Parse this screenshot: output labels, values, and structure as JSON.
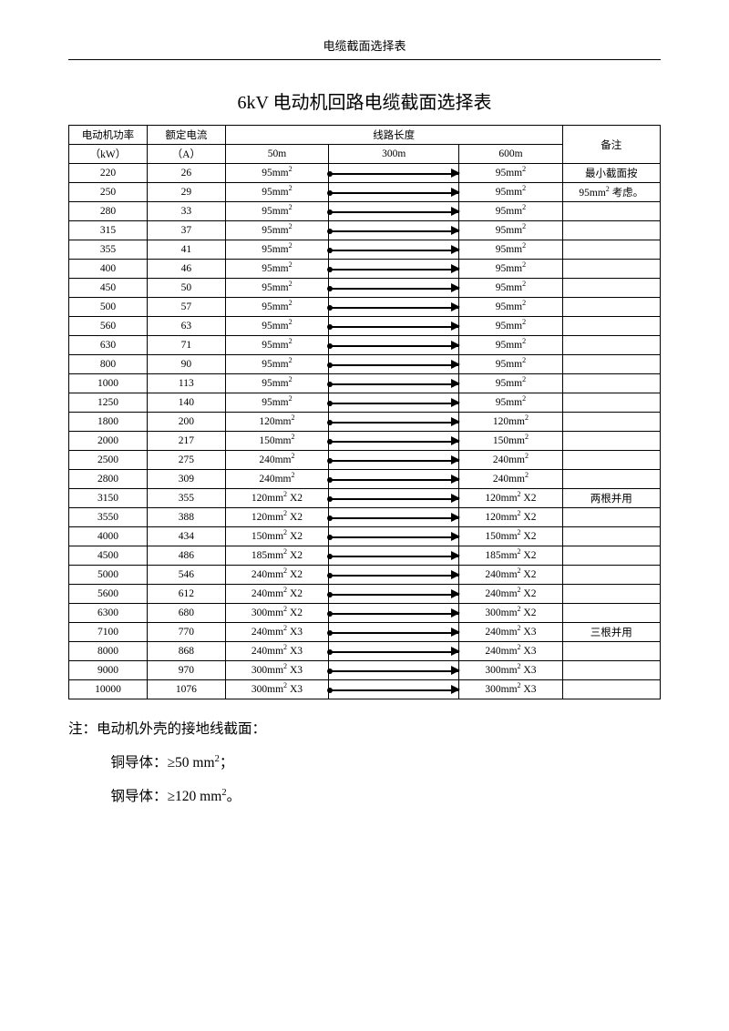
{
  "header": {
    "text": "电缆截面选择表"
  },
  "title": "6kV 电动机回路电缆截面选择表",
  "columns": {
    "power": "电动机功率",
    "power_unit": "（kW）",
    "current": "额定电流",
    "current_unit": "（A）",
    "length_group": "线路长度",
    "l50": "50m",
    "l300": "300m",
    "l600": "600m",
    "remark": "备注"
  },
  "rows": [
    {
      "p": "220",
      "a": "26",
      "v50": "95mm",
      "v50x": "",
      "v600": "95mm",
      "v600x": "",
      "rem": "最小截面按"
    },
    {
      "p": "250",
      "a": "29",
      "v50": "95mm",
      "v50x": "",
      "v600": "95mm",
      "v600x": "",
      "rem": "95mm² 考虑。"
    },
    {
      "p": "280",
      "a": "33",
      "v50": "95mm",
      "v50x": "",
      "v600": "95mm",
      "v600x": "",
      "rem": ""
    },
    {
      "p": "315",
      "a": "37",
      "v50": "95mm",
      "v50x": "",
      "v600": "95mm",
      "v600x": "",
      "rem": ""
    },
    {
      "p": "355",
      "a": "41",
      "v50": "95mm",
      "v50x": "",
      "v600": "95mm",
      "v600x": "",
      "rem": ""
    },
    {
      "p": "400",
      "a": "46",
      "v50": "95mm",
      "v50x": "",
      "v600": "95mm",
      "v600x": "",
      "rem": ""
    },
    {
      "p": "450",
      "a": "50",
      "v50": "95mm",
      "v50x": "",
      "v600": "95mm",
      "v600x": "",
      "rem": ""
    },
    {
      "p": "500",
      "a": "57",
      "v50": "95mm",
      "v50x": "",
      "v600": "95mm",
      "v600x": "",
      "rem": ""
    },
    {
      "p": "560",
      "a": "63",
      "v50": "95mm",
      "v50x": "",
      "v600": "95mm",
      "v600x": "",
      "rem": ""
    },
    {
      "p": "630",
      "a": "71",
      "v50": "95mm",
      "v50x": "",
      "v600": "95mm",
      "v600x": "",
      "rem": ""
    },
    {
      "p": "800",
      "a": "90",
      "v50": "95mm",
      "v50x": "",
      "v600": "95mm",
      "v600x": "",
      "rem": ""
    },
    {
      "p": "1000",
      "a": "113",
      "v50": "95mm",
      "v50x": "",
      "v600": "95mm",
      "v600x": "",
      "rem": ""
    },
    {
      "p": "1250",
      "a": "140",
      "v50": "95mm",
      "v50x": "",
      "v600": "95mm",
      "v600x": "",
      "rem": ""
    },
    {
      "p": "1800",
      "a": "200",
      "v50": "120mm",
      "v50x": "",
      "v600": "120mm",
      "v600x": "",
      "rem": ""
    },
    {
      "p": "2000",
      "a": "217",
      "v50": "150mm",
      "v50x": "",
      "v600": "150mm",
      "v600x": "",
      "rem": ""
    },
    {
      "p": "2500",
      "a": "275",
      "v50": "240mm",
      "v50x": "",
      "v600": "240mm",
      "v600x": "",
      "rem": ""
    },
    {
      "p": "2800",
      "a": "309",
      "v50": "240mm",
      "v50x": "",
      "v600": "240mm",
      "v600x": "",
      "rem": ""
    },
    {
      "p": "3150",
      "a": "355",
      "v50": "120mm",
      "v50x": " X2",
      "v600": "120mm",
      "v600x": " X2",
      "rem": "两根并用"
    },
    {
      "p": "3550",
      "a": "388",
      "v50": "120mm",
      "v50x": " X2",
      "v600": "120mm",
      "v600x": " X2",
      "rem": ""
    },
    {
      "p": "4000",
      "a": "434",
      "v50": "150mm",
      "v50x": " X2",
      "v600": "150mm",
      "v600x": " X2",
      "rem": ""
    },
    {
      "p": "4500",
      "a": "486",
      "v50": "185mm",
      "v50x": " X2",
      "v600": "185mm",
      "v600x": " X2",
      "rem": ""
    },
    {
      "p": "5000",
      "a": "546",
      "v50": "240mm",
      "v50x": " X2",
      "v600": "240mm",
      "v600x": " X2",
      "rem": ""
    },
    {
      "p": "5600",
      "a": "612",
      "v50": "240mm",
      "v50x": " X2",
      "v600": "240mm",
      "v600x": " X2",
      "rem": ""
    },
    {
      "p": "6300",
      "a": "680",
      "v50": "300mm",
      "v50x": " X2",
      "v600": "300mm",
      "v600x": " X2",
      "rem": ""
    },
    {
      "p": "7100",
      "a": "770",
      "v50": "240mm",
      "v50x": " X3",
      "v600": "240mm",
      "v600x": " X3",
      "rem": "三根并用"
    },
    {
      "p": "8000",
      "a": "868",
      "v50": "240mm",
      "v50x": " X3",
      "v600": "240mm",
      "v600x": " X3",
      "rem": ""
    },
    {
      "p": "9000",
      "a": "970",
      "v50": "300mm",
      "v50x": " X3",
      "v600": "300mm",
      "v600x": " X3",
      "rem": ""
    },
    {
      "p": "10000",
      "a": "1076",
      "v50": "300mm",
      "v50x": " X3",
      "v600": "300mm",
      "v600x": " X3",
      "rem": ""
    }
  ],
  "notes": {
    "l1": "注：电动机外壳的接地线截面：",
    "l2_pre": "铜导体：≥50 mm",
    "l2_suf": "；",
    "l3_pre": "钢导体：≥120 mm",
    "l3_suf": "。"
  }
}
